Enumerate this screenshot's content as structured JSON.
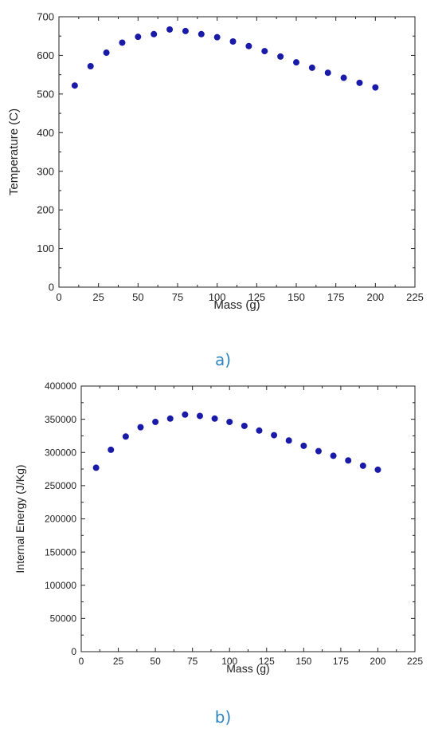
{
  "colors": {
    "marker": "#1a1aa8",
    "axis": "#222222",
    "caption": "#2e86c1"
  },
  "chart_data": [
    {
      "type": "scatter",
      "caption": "a)",
      "xlabel": "Mass (g)",
      "ylabel": "Temperature (C)",
      "xlim": [
        0,
        225
      ],
      "ylim": [
        0,
        700
      ],
      "x_ticks": [
        0,
        25,
        50,
        75,
        100,
        125,
        150,
        175,
        200,
        225
      ],
      "y_ticks": [
        0,
        100,
        200,
        300,
        400,
        500,
        600,
        700
      ],
      "x_tick_labels": [
        "0",
        "25",
        "50",
        "75",
        "100",
        "125",
        "150",
        "175",
        "200",
        "225"
      ],
      "y_tick_labels": [
        "0",
        "100",
        "200",
        "300",
        "400",
        "500",
        "600",
        "700"
      ],
      "grid": false,
      "series": [
        {
          "x": [
            10,
            20,
            30,
            40,
            50,
            60,
            70,
            80,
            90,
            100,
            110,
            120,
            130,
            140,
            150,
            160,
            170,
            180,
            190,
            200
          ],
          "y": [
            522,
            572,
            607,
            633,
            648,
            655,
            667,
            663,
            655,
            647,
            636,
            624,
            611,
            597,
            582,
            568,
            555,
            542,
            529,
            517
          ]
        }
      ]
    },
    {
      "type": "scatter",
      "caption": "b)",
      "xlabel": "Mass (g)",
      "ylabel": "Internal Energy (J/Kg)",
      "xlim": [
        0,
        225
      ],
      "ylim": [
        0,
        400000
      ],
      "x_ticks": [
        0,
        25,
        50,
        75,
        100,
        125,
        150,
        175,
        200,
        225
      ],
      "y_ticks": [
        0,
        50000,
        100000,
        150000,
        200000,
        250000,
        300000,
        350000,
        400000
      ],
      "x_tick_labels": [
        "0",
        "25",
        "50",
        "75",
        "100",
        "125",
        "150",
        "175",
        "200",
        "225"
      ],
      "y_tick_labels": [
        "0",
        "50000",
        "100000",
        "150000",
        "200000",
        "250000",
        "300000",
        "350000",
        "400000"
      ],
      "grid": false,
      "series": [
        {
          "x": [
            10,
            20,
            30,
            40,
            50,
            60,
            70,
            80,
            90,
            100,
            110,
            120,
            130,
            140,
            150,
            160,
            170,
            180,
            190,
            200
          ],
          "y": [
            277000,
            304000,
            324000,
            338000,
            346000,
            351000,
            357000,
            355000,
            351000,
            346000,
            340000,
            333000,
            326000,
            318000,
            310000,
            302000,
            295000,
            288000,
            280000,
            274000
          ]
        }
      ]
    }
  ]
}
